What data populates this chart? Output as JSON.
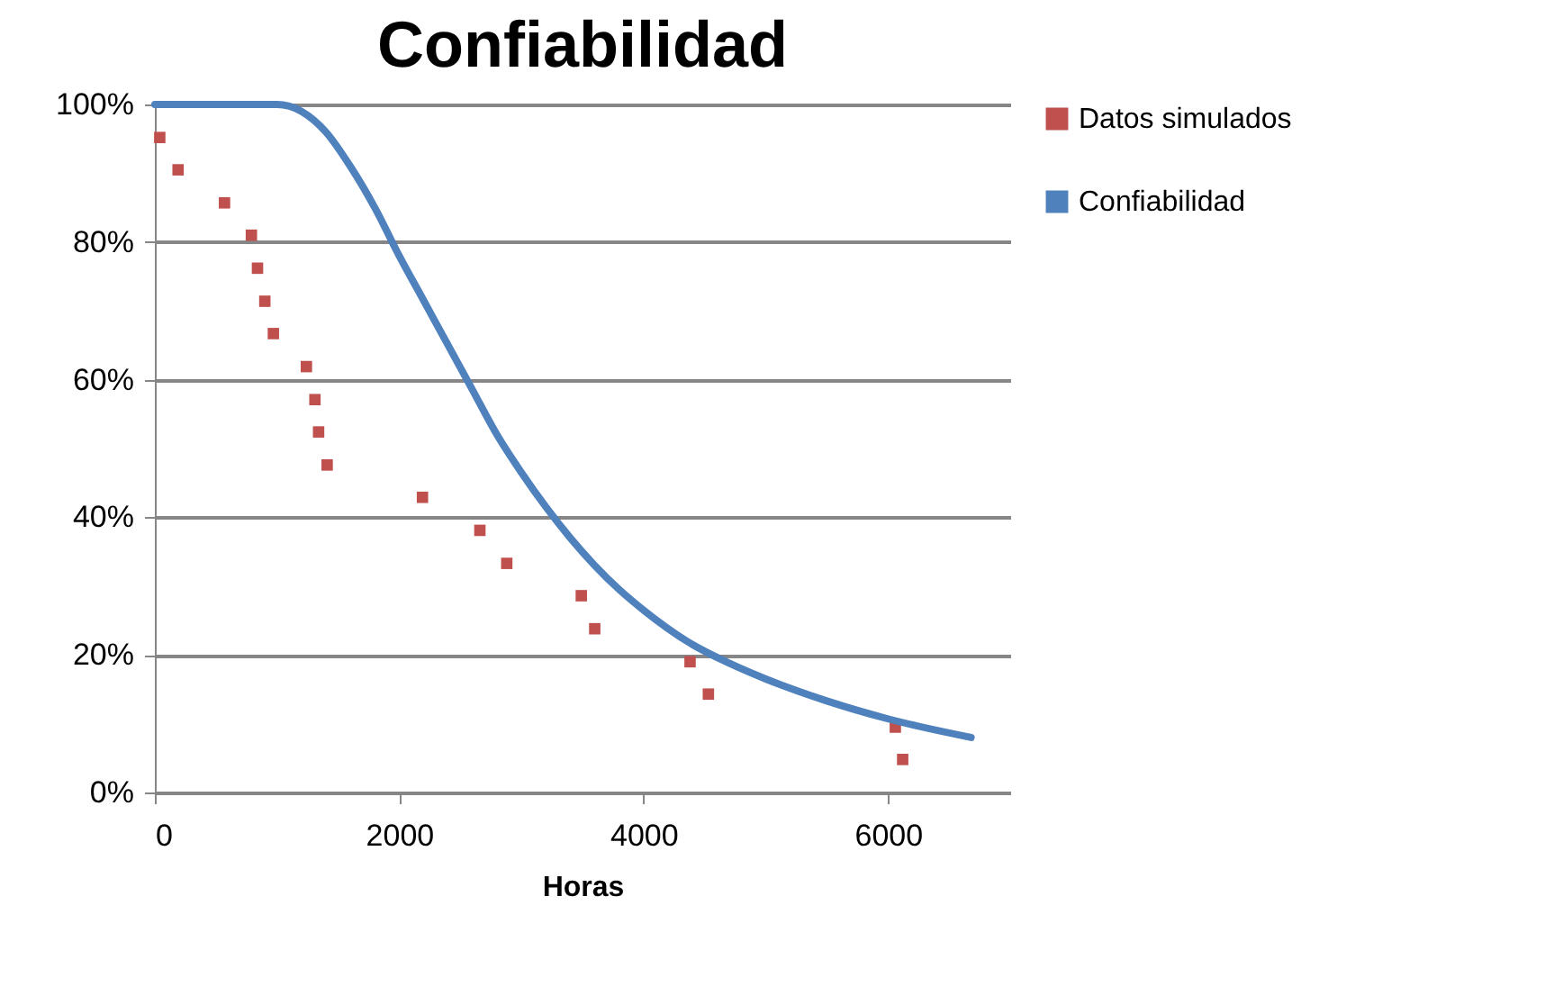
{
  "chart_data": {
    "type": "scatter",
    "title": "Confiabilidad",
    "xlabel": "Horas",
    "xlim": [
      0,
      7000
    ],
    "xticks": [
      0,
      2000,
      4000,
      6000
    ],
    "ylim": [
      0,
      100
    ],
    "yticks": [
      {
        "value": 0,
        "label": "0%"
      },
      {
        "value": 20,
        "label": "20%"
      },
      {
        "value": 40,
        "label": "40%"
      },
      {
        "value": 60,
        "label": "60%"
      },
      {
        "value": 80,
        "label": "80%"
      },
      {
        "value": 100,
        "label": "100%"
      }
    ],
    "grid": "y",
    "legend": "right",
    "marker": "square",
    "series": [
      {
        "name": "Datos simulados",
        "color": "#c0504d",
        "x": [
          40,
          190,
          570,
          790,
          840,
          900,
          970,
          1240,
          1310,
          1340,
          1410,
          2190,
          2660,
          2880,
          3490,
          3600,
          4380,
          4530,
          6060,
          6120
        ],
        "values": [
          95.2,
          90.5,
          85.7,
          81,
          76.2,
          71.4,
          66.7,
          61.9,
          57.1,
          52.4,
          47.6,
          42.9,
          38.1,
          33.3,
          28.6,
          23.8,
          19,
          14.3,
          9.5,
          4.8
        ]
      },
      {
        "name": "Confiabilidad",
        "type": "line",
        "color": "#4f81bd",
        "marker": "none",
        "line_style": "solid",
        "x": [
          0,
          500,
          1000,
          1200,
          1400,
          1600,
          1800,
          2000,
          2200,
          2400,
          2600,
          2800,
          3000,
          3200,
          3400,
          3600,
          3800,
          4000,
          4400,
          4700,
          5000,
          5500,
          6000,
          6680
        ],
        "values": [
          100,
          100,
          100,
          99,
          96,
          91,
          85,
          78,
          71.5,
          65,
          58.5,
          52,
          46.5,
          41.5,
          37,
          33,
          29.5,
          26.5,
          21.5,
          18.8,
          16.5,
          13.3,
          10.7,
          8
        ]
      }
    ]
  }
}
